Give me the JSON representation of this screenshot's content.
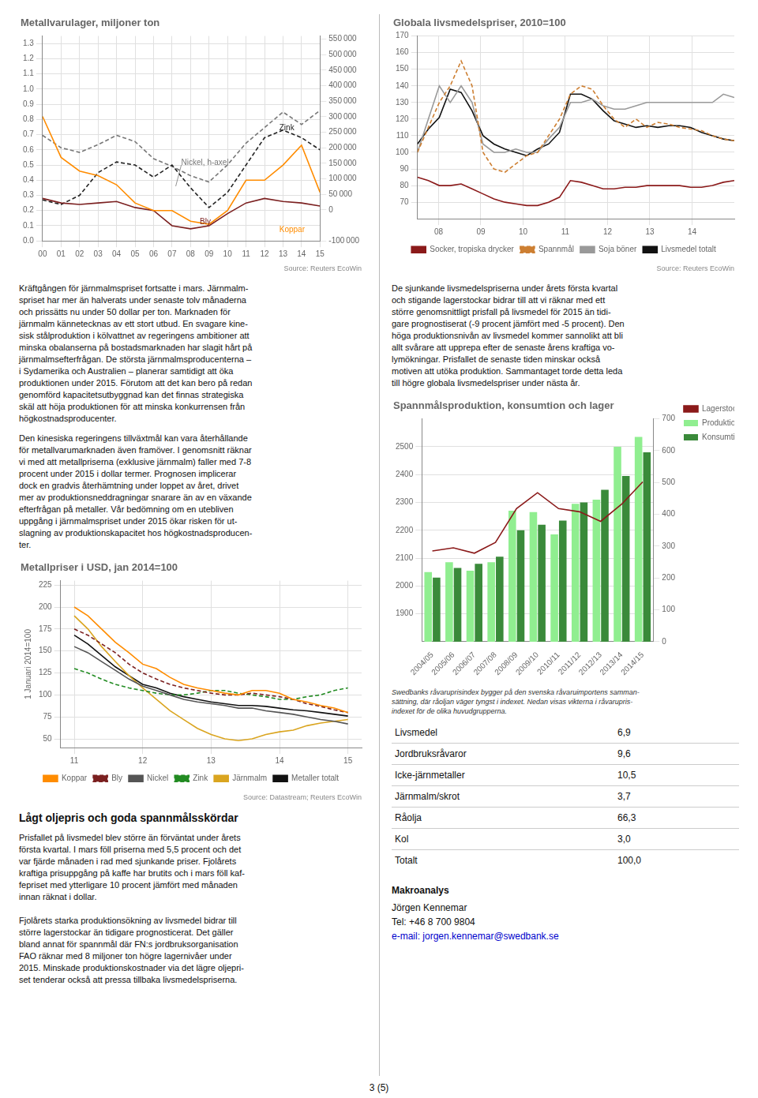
{
  "chart_data": [
    {
      "type": "line",
      "title": "Metallvarulager, miljoner ton",
      "source": "Source: Reuters EcoWin",
      "x": [
        2000,
        2001,
        2002,
        2003,
        2004,
        2005,
        2006,
        2007,
        2008,
        2009,
        2010,
        2011,
        2012,
        2013,
        2014,
        2015
      ],
      "series": [
        {
          "color": "#FF8C00",
          "values": [
            0.82,
            0.55,
            0.46,
            0.43,
            0.37,
            0.25,
            0.2,
            0.2,
            0.13,
            0.11,
            0.2,
            0.4,
            0.4,
            0.5,
            0.63,
            0.32
          ]
        },
        {
          "color": "#7B2020",
          "values": [
            0.28,
            0.25,
            0.24,
            0.25,
            0.26,
            0.22,
            0.2,
            0.1,
            0.08,
            0.1,
            0.18,
            0.25,
            0.28,
            0.26,
            0.25,
            0.23
          ]
        },
        {
          "color": "#222222",
          "line_style": "dashed",
          "values": [
            0.27,
            0.24,
            0.3,
            0.45,
            0.52,
            0.5,
            0.42,
            0.5,
            0.35,
            0.22,
            0.32,
            0.5,
            0.68,
            0.73,
            0.68,
            0.6
          ]
        },
        {
          "color": "#777777",
          "line_style": "dashed",
          "axis": "y2",
          "values": [
            240000,
            200000,
            185000,
            210000,
            240000,
            220000,
            165000,
            140000,
            110000,
            90000,
            145000,
            215000,
            265000,
            315000,
            275000,
            320000
          ]
        }
      ],
      "xlim": [
        2000,
        2015
      ],
      "xticks": [
        {
          "value": 2000,
          "label": "00"
        },
        {
          "value": 2001,
          "label": "01"
        },
        {
          "value": 2002,
          "label": "02"
        },
        {
          "value": 2003,
          "label": "03"
        },
        {
          "value": 2004,
          "label": "04"
        },
        {
          "value": 2005,
          "label": "05"
        },
        {
          "value": 2006,
          "label": "06"
        },
        {
          "value": 2007,
          "label": "07"
        },
        {
          "value": 2008,
          "label": "08"
        },
        {
          "value": 2009,
          "label": "09"
        },
        {
          "value": 2010,
          "label": "10"
        },
        {
          "value": 2011,
          "label": "11"
        },
        {
          "value": 2012,
          "label": "12"
        },
        {
          "value": 2013,
          "label": "13"
        },
        {
          "value": 2014,
          "label": "14"
        },
        {
          "value": 2015,
          "label": "15"
        }
      ],
      "ylim": [
        0.0,
        1.35
      ],
      "yticks": [
        {
          "value": 0.0,
          "label": "0.0"
        },
        0.1,
        0.2,
        0.3,
        0.4,
        0.5,
        0.6,
        0.7,
        0.8,
        0.9,
        {
          "value": 1.0,
          "label": "1.0"
        },
        1.1,
        1.2,
        1.3
      ],
      "y2lim": [
        -100000,
        560000
      ],
      "y2ticks": [
        {
          "value": -100000,
          "label": "-100 000"
        },
        0,
        {
          "value": 50000,
          "label": "50 000"
        },
        {
          "value": 100000,
          "label": "100 000"
        },
        {
          "value": 150000,
          "label": "150 000"
        },
        {
          "value": 200000,
          "label": "200 000"
        },
        {
          "value": 250000,
          "label": "250 000"
        },
        {
          "value": 300000,
          "label": "300 000"
        },
        {
          "value": 350000,
          "label": "350 000"
        },
        {
          "value": 400000,
          "label": "400 000"
        },
        {
          "value": 450000,
          "label": "450 000"
        },
        {
          "value": 500000,
          "label": "500 000"
        },
        {
          "value": 550000,
          "label": "550 000"
        }
      ],
      "grid": true,
      "annotations": [
        {
          "text": "Zink",
          "x": 2012.8,
          "y": 0.73,
          "color": "#222222"
        },
        {
          "text": "Nickel, h-axel",
          "x": 2007.5,
          "y": 0.5,
          "color": "#777777",
          "arrow_to": [
            2007.2,
            0.36
          ]
        },
        {
          "text": "Bly",
          "x": 2008.5,
          "y": 0.11,
          "color": "#7B2020"
        },
        {
          "text": "Koppar",
          "x": 2012.8,
          "y": 0.06,
          "color": "#FF8C00"
        }
      ]
    },
    {
      "type": "line",
      "title": "Globala livsmedelspriser, 2010=100",
      "source": "Source: Reuters EcoWin",
      "x": [
        7.5,
        7.758621,
        8.017241,
        8.275862,
        8.534483,
        8.793103,
        9.051724,
        9.310345,
        9.568966,
        9.827586,
        10.086207,
        10.344828,
        10.603448,
        10.862069,
        11.12069,
        11.37931,
        11.637931,
        11.896552,
        12.155172,
        12.413793,
        12.672414,
        12.931034,
        13.189655,
        13.448276,
        13.706897,
        13.965517,
        14.224138,
        14.482759,
        14.741379,
        15.0
      ],
      "series": [
        {
          "name": "Socker, tropiska drycker",
          "color": "#8B1A1A",
          "values": [
            85,
            83,
            80,
            80,
            81,
            78,
            75,
            72,
            70,
            69,
            68,
            68,
            70,
            73,
            83,
            82,
            80,
            78,
            78,
            79,
            79,
            80,
            80,
            80,
            80,
            79,
            79,
            80,
            82,
            83
          ]
        },
        {
          "name": "Spannmål",
          "color": "#CD7F32",
          "line_style": "dashed",
          "values": [
            100,
            115,
            130,
            140,
            155,
            140,
            100,
            90,
            88,
            93,
            98,
            100,
            110,
            120,
            135,
            140,
            138,
            128,
            120,
            115,
            120,
            115,
            118,
            117,
            115,
            114,
            113,
            110,
            108,
            107
          ]
        },
        {
          "name": "Soja böner",
          "color": "#999999",
          "values": [
            100,
            120,
            140,
            130,
            140,
            130,
            105,
            100,
            100,
            102,
            100,
            100,
            108,
            115,
            130,
            130,
            132,
            128,
            126,
            126,
            128,
            130,
            130,
            130,
            130,
            130,
            130,
            130,
            135,
            133
          ]
        },
        {
          "name": "Livsmedel totalt",
          "color": "#111111",
          "values": [
            105,
            114,
            121,
            138,
            136,
            125,
            110,
            105,
            102,
            100,
            98,
            102,
            105,
            112,
            135,
            135,
            132,
            125,
            119,
            117,
            115,
            116,
            115,
            116,
            116,
            115,
            112,
            110,
            108,
            107
          ]
        }
      ],
      "xlim": [
        7.5,
        15.0
      ],
      "xticks": [
        {
          "value": 8,
          "label": "08"
        },
        {
          "value": 9,
          "label": "09"
        },
        10,
        11,
        12,
        13,
        14
      ],
      "ylim": [
        60,
        170
      ],
      "yticks": [
        70,
        80,
        90,
        100,
        110,
        120,
        130,
        140,
        150,
        160,
        170
      ],
      "grid": true,
      "legend": "bottom"
    },
    {
      "type": "line",
      "title": "Metallpriser i USD, jan 2014=100",
      "y_label": "1 Januari 2014=100",
      "source": "Source: Datastream; Reuters EcoWin",
      "x": [
        11.0,
        11.2,
        11.4,
        11.6,
        11.8,
        12.0,
        12.2,
        12.4,
        12.6,
        12.8,
        13.0,
        13.2,
        13.4,
        13.6,
        13.8,
        14.0,
        14.2,
        14.4,
        14.6,
        14.8,
        15.0
      ],
      "series": [
        {
          "name": "Koppar",
          "color": "#FF8C00",
          "values": [
            200,
            190,
            175,
            160,
            148,
            135,
            130,
            120,
            112,
            108,
            105,
            102,
            100,
            105,
            105,
            102,
            95,
            92,
            88,
            85,
            80
          ]
        },
        {
          "name": "Bly",
          "color": "#7B2020",
          "line_style": "dashed",
          "values": [
            175,
            168,
            158,
            148,
            135,
            125,
            118,
            112,
            108,
            105,
            102,
            100,
            100,
            102,
            100,
            98,
            95,
            90,
            87,
            83,
            80
          ]
        },
        {
          "name": "Nickel",
          "color": "#555555",
          "values": [
            155,
            148,
            138,
            128,
            118,
            110,
            105,
            100,
            95,
            92,
            90,
            88,
            85,
            85,
            82,
            80,
            78,
            75,
            72,
            70,
            67
          ]
        },
        {
          "name": "Zink",
          "color": "#228B22",
          "line_style": "dashed",
          "values": [
            130,
            125,
            118,
            112,
            108,
            105,
            102,
            100,
            100,
            102,
            105,
            105,
            102,
            100,
            98,
            95,
            95,
            98,
            100,
            105,
            108
          ]
        },
        {
          "name": "Järnmalm",
          "color": "#DAA520",
          "values": [
            190,
            175,
            155,
            138,
            122,
            108,
            95,
            82,
            72,
            62,
            55,
            50,
            48,
            50,
            55,
            58,
            60,
            65,
            68,
            70,
            72
          ]
        },
        {
          "name": "Metaller totalt",
          "color": "#111111",
          "values": [
            168,
            158,
            145,
            132,
            122,
            112,
            108,
            102,
            98,
            95,
            92,
            90,
            88,
            88,
            87,
            85,
            83,
            82,
            80,
            78,
            76
          ]
        }
      ],
      "xlim": [
        10.8,
        15.2
      ],
      "xticks": [
        11,
        12,
        13,
        14,
        15
      ],
      "ylim": [
        40,
        230
      ],
      "yticks": [
        50,
        75,
        100,
        125,
        150,
        175,
        200,
        225
      ],
      "grid": true,
      "legend": "bottom"
    },
    {
      "type": "bar",
      "title": "Spannmålsproduktion, konsumtion och lager",
      "categories": [
        "2004/05",
        "2005/06",
        "2006/07",
        "2007/08",
        "2008/09",
        "2009/10",
        "2010/11",
        "2011/12",
        "2012/13",
        "2013/14",
        "2014/15"
      ],
      "series": [
        {
          "name": "Produktion",
          "color": "#90EE90",
          "values": [
            2050,
            2085,
            2055,
            2085,
            2270,
            2265,
            2185,
            2295,
            2310,
            2500,
            2535
          ]
        },
        {
          "name": "Konsumtion",
          "color": "#3a8a3a",
          "values": [
            2030,
            2065,
            2080,
            2105,
            2200,
            2220,
            2235,
            2300,
            2345,
            2395,
            2480
          ]
        },
        {
          "name": "Lagerstockar,h-axel",
          "type": "line",
          "color": "#8B1A1A",
          "axis": "y2",
          "values": [
            285,
            295,
            278,
            312,
            418,
            468,
            418,
            408,
            378,
            432,
            502
          ]
        }
      ],
      "ylim": [
        1800,
        2600
      ],
      "yticks": [
        1900,
        2000,
        2100,
        2200,
        2300,
        2400,
        2500
      ],
      "y2lim": [
        0,
        700
      ],
      "y2ticks": [
        0,
        100,
        200,
        300,
        400,
        500,
        600,
        700
      ],
      "grid": "y",
      "legend": "right"
    }
  ],
  "page": {
    "text1": "Kräftgången för järnmalmspriset fortsatte i mars. Järnmalm-\nspriset har mer än halverats under senaste tolv månaderna\noch prissätts nu under 50 dollar per ton. Marknaden för\njärnmalm kännetecknas av ett stort utbud. En svagare kine-\nsisk stålproduktion i kölvattnet av regeringens ambitioner att\nminska obalanserna på bostadsmarknaden har slagit hårt på\njärnmalmsefterfrågan. De största järnmalmsproducenterna –\ni Sydamerika och Australien – planerar samtidigt att öka\nproduktionen under 2015. Förutom att det kan bero på redan\ngenomförd kapacitetsutbyggnad kan det finnas strategiska\nskäl att höja produktionen för att minska konkurrensen från\nhögkostnadsproducenter.",
    "text2": "Den kinesiska regeringens tillväxtmål kan vara återhållande\nför metallvarumarknaden även framöver. I genomsnitt räknar\nvi med att metallpriserna (exklusive järnmalm) faller med 7-8\nprocent under 2015 i dollar termer. Prognosen implicerar\ndock en gradvis återhämtning under loppet av året, drivet\nmer av produktionsneddragningar snarare än av en växande\nefterfrågan på metaller. Vår bedömning om en utebliven\nuppgång i järnmalmspriset under 2015 ökar risken för ut-\nslagning av produktionskapacitet hos högkostnadsproducen-\nter.",
    "text3": "De sjunkande livsmedelspriserna under årets första kvartal\noch stigande lagerstockar bidrar till att vi räknar med ett\nstörre genomsnittligt prisfall på livsmedel för 2015 än tidi-\ngare prognostiserat (-9 procent jämfört med -5 procent). Den\nhöga produktionsnivån av livsmedel kommer sannolikt att bli\nallt svårare att upprepa efter de senaste årens kraftiga vo-\nlymökningar. Prisfallet de senaste tiden minskar också\nmotiven att utöka produktion. Sammantaget torde detta leda\ntill högre globala livsmedelspriser under nästa år.",
    "heading_oil": "Lågt oljepris och goda spannmålsskördar",
    "text_oil": "Prisfallet på livsmedel blev större än förväntat under årets\nförsta kvartal. I mars föll priserna med 5,5 procent och det\nvar fjärde månaden i rad med sjunkande priser. Fjolårets\nkraftiga prisuppgång på kaffe har brutits och i mars föll kaf-\nfepriset med ytterligare 10 procent jämfört med månaden\ninnan räknat i dollar.\n\nFjolårets starka produktionsökning av livsmedel bidrar till\nstörre lagerstockar än tidigare prognosticerat. Det gäller\nbland annat för spannmål där FN:s jordbruksorganisation\nFAO räknar med 8 miljoner ton högre lagernivåer under\n2015. Minskade produktionskostnader via det lägre oljepri-\nset tenderar också att pressa tillbaka livsmedelspriserna.",
    "table_note": "Swedbanks råvaruprisindex bygger på den svenska råvaruimportens samman-\nsättning, där råoljan väger tyngst i indexet. Nedan visas vikterna i råvarupris-\nindexet för de olika huvudgrupperna.",
    "table_rows": [
      [
        "Livsmedel",
        "6,9"
      ],
      [
        "Jordbruksråvaror",
        "9,6"
      ],
      [
        "Icke-järnmetaller",
        "10,5"
      ],
      [
        "Järnmalm/skrot",
        "3,7"
      ],
      [
        "Råolja",
        "66,3"
      ],
      [
        "Kol",
        "3,0"
      ],
      [
        "Totalt",
        "100,0"
      ]
    ],
    "contact_header": "Makroanalys",
    "contact_name": "Jörgen Kennemar",
    "contact_tel": "Tel: +46 8 700 9804",
    "contact_email": "e-mail: jorgen.kennemar@swedbank.se",
    "page_num": "3 (5)"
  }
}
